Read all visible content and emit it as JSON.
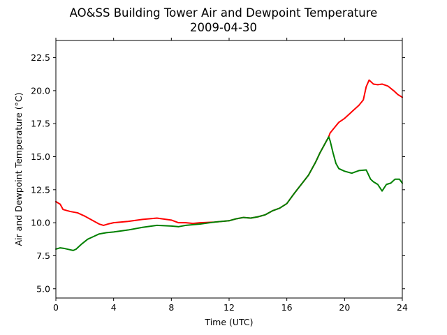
{
  "chart_data": {
    "type": "line",
    "title": "AO&SS Building Tower Air and Dewpoint Temperature",
    "subtitle": "2009-04-30",
    "xlabel": "Time (UTC)",
    "ylabel": "Air and Dewpoint Temperature (°C)",
    "xlim": [
      0,
      24
    ],
    "ylim": [
      4.3,
      23.8
    ],
    "xticks": [
      0,
      4,
      8,
      12,
      16,
      20,
      24
    ],
    "xtick_labels": [
      "0",
      "4",
      "8",
      "12",
      "16",
      "20",
      "24"
    ],
    "yticks": [
      5.0,
      7.5,
      10.0,
      12.5,
      15.0,
      17.5,
      20.0,
      22.5
    ],
    "ytick_labels": [
      "5.0",
      "7.5",
      "10.0",
      "12.5",
      "15.0",
      "17.5",
      "20.0",
      "22.5"
    ],
    "grid": false,
    "legend": "none",
    "series": [
      {
        "color": "#ff0000",
        "points": [
          [
            0,
            11.6
          ],
          [
            0.3,
            11.4
          ],
          [
            0.5,
            11.0
          ],
          [
            1.0,
            10.85
          ],
          [
            1.5,
            10.75
          ],
          [
            2.0,
            10.5
          ],
          [
            2.5,
            10.2
          ],
          [
            3.0,
            9.9
          ],
          [
            3.3,
            9.8
          ],
          [
            3.6,
            9.9
          ],
          [
            4.0,
            10.0
          ],
          [
            5.0,
            10.1
          ],
          [
            6.0,
            10.25
          ],
          [
            7.0,
            10.35
          ],
          [
            8.0,
            10.2
          ],
          [
            8.5,
            10.0
          ],
          [
            9.0,
            10.0
          ],
          [
            9.5,
            9.95
          ],
          [
            10.0,
            10.0
          ],
          [
            11.0,
            10.05
          ],
          [
            12.0,
            10.15
          ],
          [
            12.5,
            10.3
          ],
          [
            13.0,
            10.4
          ],
          [
            13.5,
            10.35
          ],
          [
            14.0,
            10.45
          ],
          [
            14.5,
            10.6
          ],
          [
            15.0,
            10.9
          ],
          [
            15.5,
            11.1
          ],
          [
            16.0,
            11.45
          ],
          [
            16.5,
            12.2
          ],
          [
            17.0,
            12.9
          ],
          [
            17.5,
            13.6
          ],
          [
            18.0,
            14.6
          ],
          [
            18.3,
            15.3
          ],
          [
            18.6,
            15.9
          ],
          [
            18.9,
            16.5
          ],
          [
            19.0,
            16.8
          ],
          [
            19.3,
            17.2
          ],
          [
            19.6,
            17.6
          ],
          [
            20.0,
            17.9
          ],
          [
            20.3,
            18.2
          ],
          [
            20.6,
            18.5
          ],
          [
            21.0,
            18.9
          ],
          [
            21.3,
            19.3
          ],
          [
            21.5,
            20.3
          ],
          [
            21.7,
            20.8
          ],
          [
            22.0,
            20.5
          ],
          [
            22.3,
            20.45
          ],
          [
            22.6,
            20.5
          ],
          [
            23.0,
            20.35
          ],
          [
            23.4,
            20.0
          ],
          [
            23.7,
            19.7
          ],
          [
            24.0,
            19.5
          ]
        ]
      },
      {
        "color": "#008000",
        "points": [
          [
            0,
            8.0
          ],
          [
            0.3,
            8.1
          ],
          [
            0.6,
            8.05
          ],
          [
            1.0,
            7.95
          ],
          [
            1.2,
            7.9
          ],
          [
            1.4,
            8.0
          ],
          [
            1.8,
            8.4
          ],
          [
            2.2,
            8.75
          ],
          [
            2.6,
            8.95
          ],
          [
            3.0,
            9.15
          ],
          [
            3.5,
            9.25
          ],
          [
            4.0,
            9.3
          ],
          [
            5.0,
            9.45
          ],
          [
            6.0,
            9.65
          ],
          [
            7.0,
            9.8
          ],
          [
            8.0,
            9.75
          ],
          [
            8.5,
            9.7
          ],
          [
            9.0,
            9.8
          ],
          [
            10.0,
            9.9
          ],
          [
            11.0,
            10.05
          ],
          [
            12.0,
            10.15
          ],
          [
            12.5,
            10.3
          ],
          [
            13.0,
            10.4
          ],
          [
            13.5,
            10.35
          ],
          [
            14.0,
            10.45
          ],
          [
            14.5,
            10.6
          ],
          [
            15.0,
            10.9
          ],
          [
            15.5,
            11.1
          ],
          [
            16.0,
            11.45
          ],
          [
            16.5,
            12.2
          ],
          [
            17.0,
            12.9
          ],
          [
            17.5,
            13.6
          ],
          [
            18.0,
            14.6
          ],
          [
            18.3,
            15.3
          ],
          [
            18.6,
            15.9
          ],
          [
            18.9,
            16.5
          ],
          [
            19.0,
            16.2
          ],
          [
            19.2,
            15.3
          ],
          [
            19.4,
            14.5
          ],
          [
            19.6,
            14.1
          ],
          [
            20.0,
            13.9
          ],
          [
            20.5,
            13.75
          ],
          [
            21.0,
            13.95
          ],
          [
            21.5,
            14.0
          ],
          [
            21.8,
            13.3
          ],
          [
            22.0,
            13.1
          ],
          [
            22.3,
            12.9
          ],
          [
            22.6,
            12.4
          ],
          [
            22.9,
            12.9
          ],
          [
            23.2,
            13.0
          ],
          [
            23.5,
            13.3
          ],
          [
            23.8,
            13.3
          ],
          [
            24.0,
            13.0
          ]
        ]
      }
    ]
  }
}
